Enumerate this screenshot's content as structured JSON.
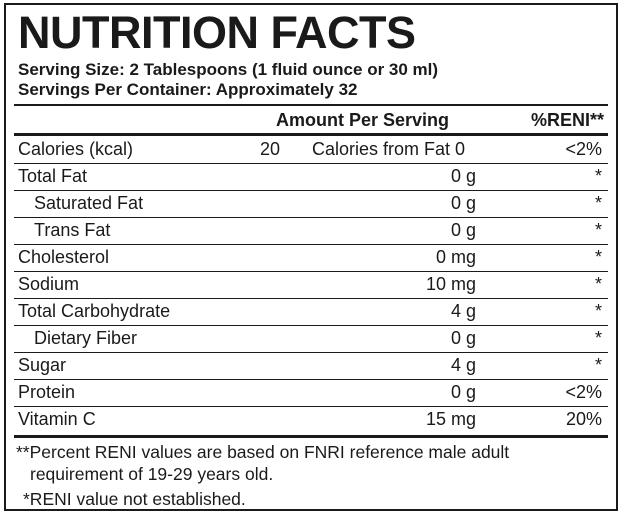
{
  "title": "NUTRITION FACTS",
  "serving_size": "Serving Size: 2 Tablespoons (1 fluid ounce or 30 ml)",
  "servings_per_container": "Servings Per Container: Approximately 32",
  "header": {
    "amount": "Amount Per Serving",
    "pct": "%RENI**"
  },
  "calories_row": {
    "label": "Calories (kcal)",
    "value": "20",
    "from_fat": "Calories from Fat 0",
    "pct": "<2%"
  },
  "rows": [
    {
      "name": "Total Fat",
      "amount": "0 g",
      "pct": "*"
    },
    {
      "name": "Saturated Fat",
      "amount": "0 g",
      "pct": "*"
    },
    {
      "name": "Trans Fat",
      "amount": "0 g",
      "pct": "*"
    },
    {
      "name": "Cholesterol",
      "amount": "0 mg",
      "pct": "*"
    },
    {
      "name": "Sodium",
      "amount": "10 mg",
      "pct": "*"
    },
    {
      "name": "Total Carbohydrate",
      "amount": "4 g",
      "pct": "*"
    },
    {
      "name": "Dietary Fiber",
      "amount": "0 g",
      "pct": "*"
    },
    {
      "name": "Sugar",
      "amount": "4 g",
      "pct": "*"
    },
    {
      "name": "Protein",
      "amount": "0 g",
      "pct": "<2%"
    },
    {
      "name": "Vitamin C",
      "amount": "15 mg",
      "pct": "20%"
    }
  ],
  "footnotes": {
    "line1": "**Percent RENI values are based on FNRI reference male adult",
    "line2": "requirement of 19-29 years old.",
    "line3": "*RENI value not established."
  }
}
